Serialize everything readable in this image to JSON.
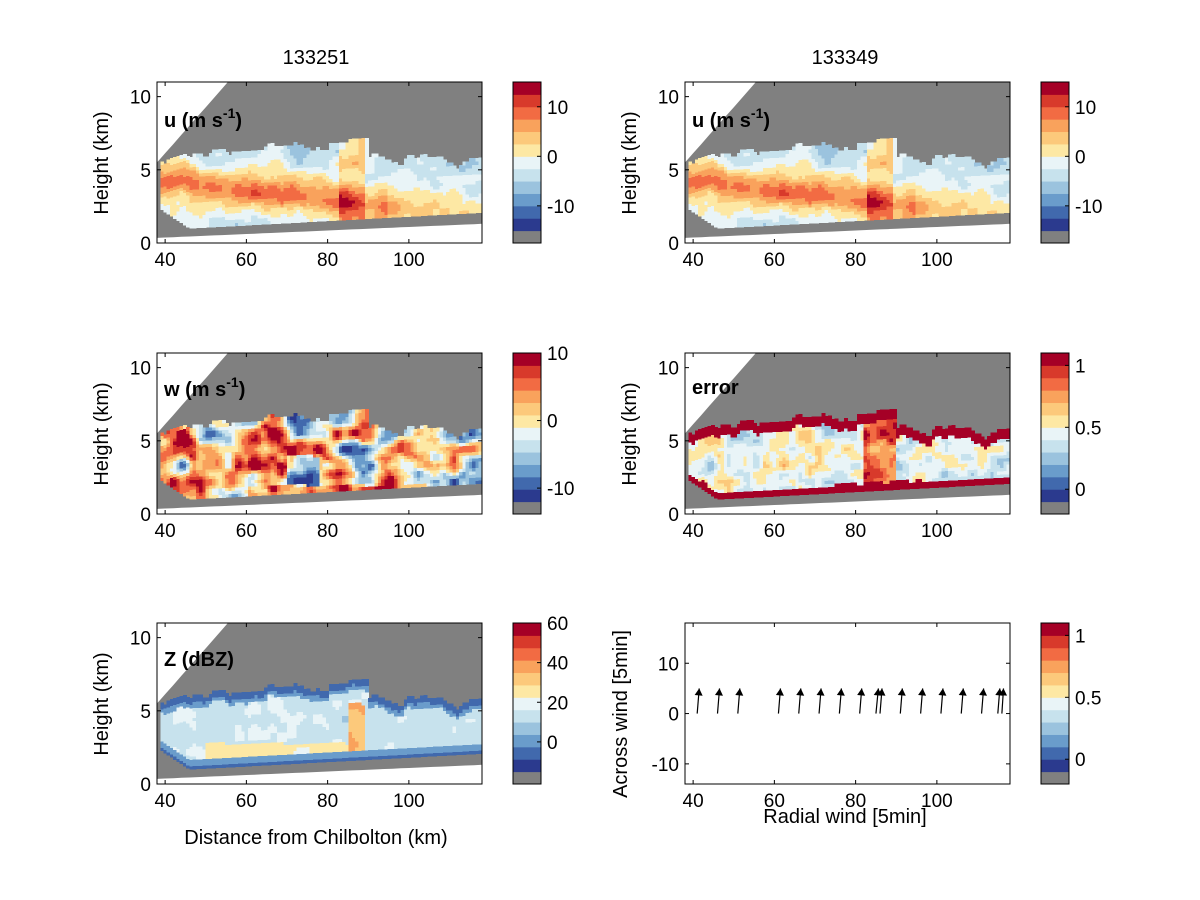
{
  "chart_data": [
    {
      "type": "heatmap",
      "id": "u_left",
      "title": "133251",
      "panel_label": "u (m s",
      "panel_label_sup": "-1",
      "panel_label_tail": ")",
      "xlabel": "",
      "ylabel": "Height (km)",
      "xlim": [
        38,
        118
      ],
      "ylim": [
        0,
        11
      ],
      "xticks": [
        "40",
        "60",
        "80",
        "100"
      ],
      "xtick_values": [
        40,
        60,
        80,
        100
      ],
      "yticks": [
        "0",
        "5",
        "10"
      ],
      "ytick_values": [
        0,
        5,
        10
      ],
      "field": "u",
      "colorbar": {
        "ticks": [
          "10",
          "0",
          "-10"
        ],
        "tick_values": [
          10,
          0,
          -10
        ],
        "range": [
          -15,
          15
        ]
      }
    },
    {
      "type": "heatmap",
      "id": "u_right",
      "title": "133349",
      "panel_label": "u (m s",
      "panel_label_sup": "-1",
      "panel_label_tail": ")",
      "xlabel": "",
      "ylabel": "Height (km)",
      "xlim": [
        38,
        118
      ],
      "ylim": [
        0,
        11
      ],
      "xticks": [
        "40",
        "60",
        "80",
        "100"
      ],
      "xtick_values": [
        40,
        60,
        80,
        100
      ],
      "yticks": [
        "0",
        "5",
        "10"
      ],
      "ytick_values": [
        0,
        5,
        10
      ],
      "field": "u",
      "colorbar": {
        "ticks": [
          "10",
          "0",
          "-10"
        ],
        "tick_values": [
          10,
          0,
          -10
        ],
        "range": [
          -15,
          15
        ]
      }
    },
    {
      "type": "heatmap",
      "id": "w_left",
      "title": "",
      "panel_label": "w (m s",
      "panel_label_sup": "-1",
      "panel_label_tail": ")",
      "xlabel": "",
      "ylabel": "Height (km)",
      "xlim": [
        38,
        118
      ],
      "ylim": [
        0,
        11
      ],
      "xticks": [
        "40",
        "60",
        "80",
        "100"
      ],
      "xtick_values": [
        40,
        60,
        80,
        100
      ],
      "yticks": [
        "0",
        "5",
        "10"
      ],
      "ytick_values": [
        0,
        5,
        10
      ],
      "field": "w",
      "colorbar": {
        "ticks": [
          "10",
          "0",
          "-10"
        ],
        "tick_values": [
          10,
          0,
          -10
        ],
        "range": [
          -12,
          10
        ]
      }
    },
    {
      "type": "heatmap",
      "id": "error_right",
      "title": "",
      "panel_label": "error",
      "panel_label_sup": "",
      "panel_label_tail": "",
      "xlabel": "",
      "ylabel": "Height (km)",
      "xlim": [
        38,
        118
      ],
      "ylim": [
        0,
        11
      ],
      "xticks": [
        "40",
        "60",
        "80",
        "100"
      ],
      "xtick_values": [
        40,
        60,
        80,
        100
      ],
      "yticks": [
        "0",
        "5",
        "10"
      ],
      "ytick_values": [
        0,
        5,
        10
      ],
      "field": "error",
      "colorbar": {
        "ticks": [
          "1",
          "0.5",
          "0"
        ],
        "tick_values": [
          1,
          0.5,
          0
        ],
        "range": [
          -0.1,
          1.1
        ]
      }
    },
    {
      "type": "heatmap",
      "id": "z_left",
      "title": "",
      "panel_label": "Z (dBZ)",
      "panel_label_sup": "",
      "panel_label_tail": "",
      "xlabel": "Distance from Chilbolton (km)",
      "ylabel": "Height (km)",
      "xlim": [
        38,
        118
      ],
      "ylim": [
        0,
        11
      ],
      "xticks": [
        "40",
        "60",
        "80",
        "100"
      ],
      "xtick_values": [
        40,
        60,
        80,
        100
      ],
      "yticks": [
        "0",
        "5",
        "10"
      ],
      "ytick_values": [
        0,
        5,
        10
      ],
      "field": "z",
      "colorbar": {
        "ticks": [
          "60",
          "40",
          "20",
          "0"
        ],
        "tick_values": [
          60,
          40,
          20,
          0
        ],
        "range": [
          -15,
          60
        ]
      }
    },
    {
      "type": "scatter",
      "id": "quiver_right",
      "title": "",
      "panel_label": "",
      "xlabel": "Radial wind [5min]",
      "ylabel": "Across wind [5min]",
      "xlim": [
        38,
        118
      ],
      "ylim": [
        -14,
        18
      ],
      "xticks": [
        "40",
        "60",
        "80",
        "100"
      ],
      "xtick_values": [
        40,
        60,
        80,
        100
      ],
      "yticks": [
        "-10",
        "0",
        "10"
      ],
      "ytick_values": [
        -10,
        0,
        10
      ],
      "x": [
        41,
        46,
        51,
        61,
        66,
        71,
        76,
        81,
        85,
        86,
        91,
        96,
        101,
        106,
        111,
        115,
        116
      ],
      "y": [
        0,
        0,
        0,
        0,
        0,
        0,
        0,
        0,
        0,
        0,
        0,
        0,
        0,
        0,
        0,
        0,
        0
      ],
      "u": [
        0.5,
        0.5,
        0.5,
        0.5,
        0.5,
        0.5,
        0.5,
        0.5,
        0.6,
        0.5,
        0.5,
        0.5,
        0.5,
        0.5,
        0.5,
        0.5,
        0.4
      ],
      "v": [
        5,
        5,
        5,
        5,
        5,
        5,
        5,
        5,
        5,
        5,
        5,
        5,
        5,
        5,
        5,
        5,
        5
      ],
      "colorbar": {
        "ticks": [
          "1",
          "0.5",
          "0"
        ],
        "tick_values": [
          1,
          0.5,
          0
        ],
        "range": [
          -0.1,
          1.1
        ]
      }
    }
  ],
  "colormap": [
    "#808080",
    "#2b3a8e",
    "#4169ad",
    "#6a9ccb",
    "#9bc3de",
    "#c7e2ed",
    "#e9f4f7",
    "#fde8a4",
    "#fcc97b",
    "#f9a25c",
    "#f26b43",
    "#d83a2b",
    "#a50026"
  ],
  "mask_color": "#808080"
}
